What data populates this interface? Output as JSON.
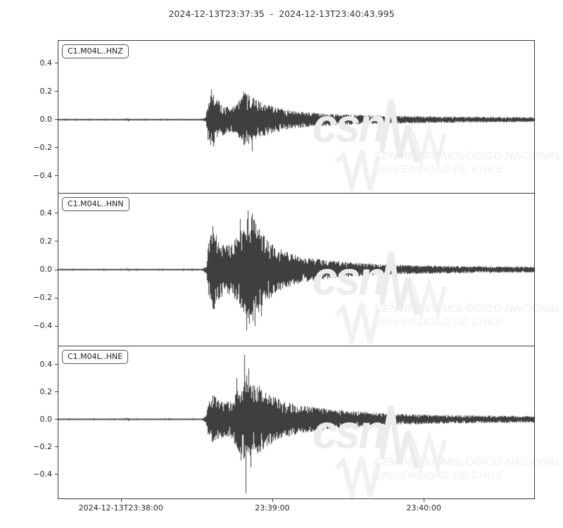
{
  "title": "2024-12-13T23:37:35  -  2024-12-13T23:40:43.995",
  "watermark": {
    "logo": "csn",
    "line1": "CENTRO SISMOLÓGICO NACIONAL",
    "line2": "UNIVERSIDAD DE CHILE"
  },
  "colors": {
    "trace": "#3f3f3f",
    "axis": "#3a3a3a",
    "tick_label": "#262626",
    "watermark_light": "#ececec"
  },
  "chart_data": {
    "type": "line",
    "title": "2024-12-13T23:37:35  -  2024-12-13T23:40:43.995",
    "x_start": "2024-12-13T23:37:35",
    "x_end": "2024-12-13T23:40:43.995",
    "duration_s": 188.995,
    "grid": false,
    "xticks": [
      {
        "t": 25,
        "label": "2024-12-13T23:38:00"
      },
      {
        "t": 85,
        "label": "23:39:00"
      },
      {
        "t": 145,
        "label": "23:40:00"
      }
    ],
    "yticks": [
      {
        "v": 0.4,
        "label": "0.4"
      },
      {
        "v": 0.2,
        "label": "0.2"
      },
      {
        "v": 0.0,
        "label": "0.0"
      },
      {
        "v": -0.2,
        "label": "−0.2"
      },
      {
        "v": -0.4,
        "label": "−0.4"
      }
    ],
    "series": [
      {
        "name": "C1.M04L..HNZ",
        "ylim": [
          -0.522,
          0.565
        ],
        "onset_s": 58.8,
        "peak": 0.21,
        "trough": -0.225,
        "envelope": [
          [
            0,
            0.003
          ],
          [
            25,
            0.003
          ],
          [
            57,
            0.004
          ],
          [
            58.6,
            0.02
          ],
          [
            59.3,
            0.16
          ],
          [
            60.8,
            0.21
          ],
          [
            62.5,
            0.15
          ],
          [
            65,
            0.115
          ],
          [
            69,
            0.085
          ],
          [
            71.5,
            0.13
          ],
          [
            73.9,
            0.195
          ],
          [
            76,
            0.17
          ],
          [
            79,
            0.14
          ],
          [
            82,
            0.115
          ],
          [
            86,
            0.09
          ],
          [
            91,
            0.07
          ],
          [
            97,
            0.055
          ],
          [
            105,
            0.045
          ],
          [
            115,
            0.036
          ],
          [
            127,
            0.03
          ],
          [
            142,
            0.025
          ],
          [
            160,
            0.021
          ],
          [
            175,
            0.019
          ],
          [
            189,
            0.017
          ]
        ],
        "spikes": [
          [
            27.2,
            0.012
          ],
          [
            27.8,
            -0.012
          ],
          [
            60.9,
            0.215
          ],
          [
            61.6,
            -0.19
          ],
          [
            73.6,
            0.2
          ],
          [
            75.2,
            0.18
          ],
          [
            77,
            -0.225
          ]
        ]
      },
      {
        "name": "C1.M04L..HNN",
        "ylim": [
          -0.543,
          0.543
        ],
        "onset_s": 58.8,
        "peak": 0.42,
        "trough": -0.43,
        "envelope": [
          [
            0,
            0.003
          ],
          [
            25,
            0.003
          ],
          [
            57,
            0.004
          ],
          [
            58.8,
            0.03
          ],
          [
            59.6,
            0.2
          ],
          [
            61.3,
            0.3
          ],
          [
            63.5,
            0.22
          ],
          [
            66.3,
            0.17
          ],
          [
            69,
            0.19
          ],
          [
            71.4,
            0.25
          ],
          [
            73.9,
            0.32
          ],
          [
            75.5,
            0.4
          ],
          [
            77,
            0.38
          ],
          [
            79.7,
            0.3
          ],
          [
            83,
            0.22
          ],
          [
            87,
            0.155
          ],
          [
            91.5,
            0.12
          ],
          [
            97,
            0.09
          ],
          [
            103,
            0.075
          ],
          [
            110,
            0.06
          ],
          [
            117,
            0.05
          ],
          [
            125,
            0.042
          ],
          [
            136,
            0.034
          ],
          [
            150,
            0.028
          ],
          [
            167,
            0.023
          ],
          [
            189,
            0.02
          ]
        ],
        "spikes": [
          [
            27.5,
            0.012
          ],
          [
            28.1,
            -0.012
          ],
          [
            61.2,
            0.31
          ],
          [
            62,
            -0.28
          ],
          [
            72.2,
            0.36
          ],
          [
            74.6,
            -0.43
          ],
          [
            75.4,
            0.42
          ],
          [
            76.8,
            0.4
          ],
          [
            78,
            -0.4
          ],
          [
            80.5,
            -0.33
          ]
        ]
      },
      {
        "name": "C1.M04L..HNE",
        "ylim": [
          -0.582,
          0.533
        ],
        "onset_s": 58.8,
        "peak": 0.47,
        "trough": -0.54,
        "envelope": [
          [
            0,
            0.003
          ],
          [
            25,
            0.003
          ],
          [
            57,
            0.004
          ],
          [
            58.7,
            0.03
          ],
          [
            59.5,
            0.14
          ],
          [
            61,
            0.18
          ],
          [
            63.5,
            0.155
          ],
          [
            66.5,
            0.125
          ],
          [
            69,
            0.15
          ],
          [
            70.5,
            0.2
          ],
          [
            72.8,
            0.28
          ],
          [
            74.2,
            0.33
          ],
          [
            76,
            0.29
          ],
          [
            78,
            0.26
          ],
          [
            80.5,
            0.235
          ],
          [
            83.5,
            0.19
          ],
          [
            87,
            0.15
          ],
          [
            91.5,
            0.125
          ],
          [
            95.5,
            0.108
          ],
          [
            101,
            0.09
          ],
          [
            107,
            0.075
          ],
          [
            113.5,
            0.065
          ],
          [
            121,
            0.055
          ],
          [
            129,
            0.046
          ],
          [
            139,
            0.039
          ],
          [
            150,
            0.033
          ],
          [
            163,
            0.029
          ],
          [
            176,
            0.026
          ],
          [
            189,
            0.024
          ]
        ],
        "spikes": [
          [
            27.3,
            0.012
          ],
          [
            28,
            -0.012
          ],
          [
            70.8,
            0.3
          ],
          [
            72.6,
            -0.3
          ],
          [
            73.8,
            0.47
          ],
          [
            74.3,
            -0.54
          ],
          [
            75.5,
            0.37
          ],
          [
            76.5,
            -0.35
          ]
        ]
      }
    ]
  }
}
